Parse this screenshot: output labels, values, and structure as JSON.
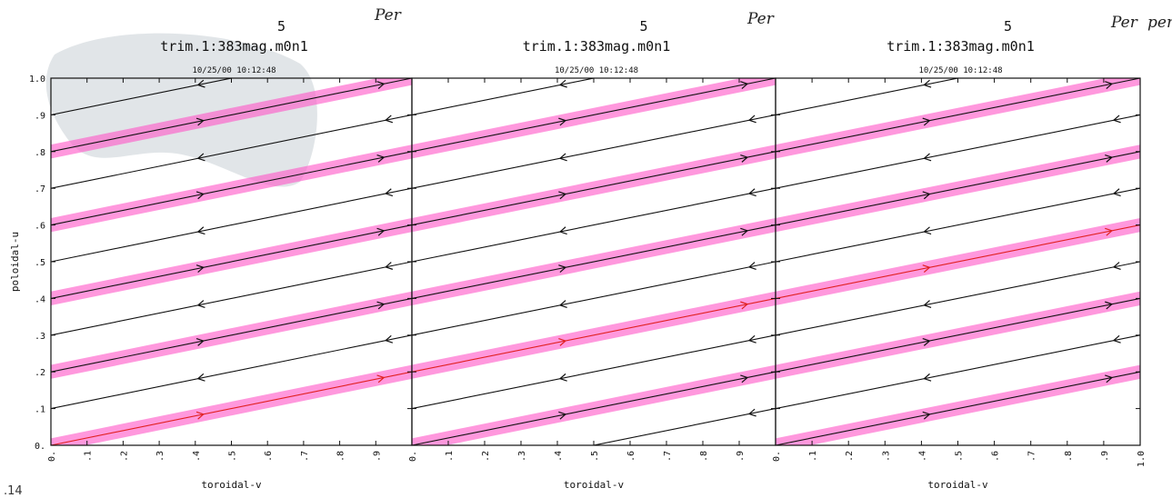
{
  "annotations": {
    "corner_text": ".14",
    "handwritten": [
      "Per",
      "Per",
      "Per",
      "per"
    ]
  },
  "chart_data": [
    {
      "type": "line",
      "panel_number": "5",
      "title": "trim.1:383mag.m0n1",
      "date": "10/25/00 10:12:48",
      "xlabel": "toroidal-v",
      "ylabel": "poloidal-u",
      "xlim": [
        0,
        1
      ],
      "ylim": [
        0,
        1
      ],
      "x_ticks": [
        "0.",
        ".1",
        ".2",
        ".3",
        ".4",
        ".5",
        ".6",
        ".7",
        ".8",
        ".9"
      ],
      "y_ticks": [
        "0.",
        ".1",
        ".2",
        ".3",
        ".4",
        ".5",
        ".6",
        ".7",
        ".8",
        ".9",
        "1.0"
      ],
      "line_slope": 0.2,
      "series": [
        {
          "y0": -0.2,
          "direction": "backward",
          "highlighted": false
        },
        {
          "y0": 0.0,
          "direction": "forward",
          "highlighted": true,
          "red_trace": true
        },
        {
          "y0": 0.1,
          "direction": "backward",
          "highlighted": false
        },
        {
          "y0": 0.2,
          "direction": "forward",
          "highlighted": true
        },
        {
          "y0": 0.3,
          "direction": "backward",
          "highlighted": false
        },
        {
          "y0": 0.4,
          "direction": "forward",
          "highlighted": true
        },
        {
          "y0": 0.5,
          "direction": "backward",
          "highlighted": false
        },
        {
          "y0": 0.6,
          "direction": "forward",
          "highlighted": true
        },
        {
          "y0": 0.7,
          "direction": "backward",
          "highlighted": false
        },
        {
          "y0": 0.8,
          "direction": "forward",
          "highlighted": true
        },
        {
          "y0": 0.9,
          "direction": "backward",
          "highlighted": false
        }
      ]
    },
    {
      "type": "line",
      "panel_number": "5",
      "title": "trim.1:383mag.m0n1",
      "date": "10/25/00 10:12:48",
      "xlabel": "toroidal-v",
      "ylabel": "",
      "xlim": [
        0,
        1
      ],
      "ylim": [
        0,
        1
      ],
      "x_ticks": [
        "0.",
        ".1",
        ".2",
        ".3",
        ".4",
        ".5",
        ".6",
        ".7",
        ".8",
        ".9"
      ],
      "y_ticks": [],
      "line_slope": 0.2,
      "series": [
        {
          "y0": -0.1,
          "direction": "backward",
          "highlighted": false
        },
        {
          "y0": 0.0,
          "direction": "forward",
          "highlighted": true
        },
        {
          "y0": 0.1,
          "direction": "backward",
          "highlighted": false
        },
        {
          "y0": 0.2,
          "direction": "forward",
          "highlighted": true,
          "red_trace": true
        },
        {
          "y0": 0.3,
          "direction": "backward",
          "highlighted": false
        },
        {
          "y0": 0.4,
          "direction": "forward",
          "highlighted": true
        },
        {
          "y0": 0.5,
          "direction": "backward",
          "highlighted": false
        },
        {
          "y0": 0.6,
          "direction": "forward",
          "highlighted": true
        },
        {
          "y0": 0.7,
          "direction": "backward",
          "highlighted": false
        },
        {
          "y0": 0.8,
          "direction": "forward",
          "highlighted": true
        },
        {
          "y0": 0.9,
          "direction": "backward",
          "highlighted": false
        }
      ]
    },
    {
      "type": "line",
      "panel_number": "5",
      "title": "trim.1:383mag.m0n1",
      "date": "10/25/00 10:12:48",
      "xlabel": "toroidal-v",
      "ylabel": "",
      "xlim": [
        0,
        1
      ],
      "ylim": [
        0,
        1
      ],
      "x_ticks": [
        "0.",
        ".1",
        ".2",
        ".3",
        ".4",
        ".5",
        ".6",
        ".7",
        ".8",
        ".9",
        "1.0"
      ],
      "y_ticks": [],
      "line_slope": 0.2,
      "series": [
        {
          "y0": -0.2,
          "direction": "backward",
          "highlighted": false
        },
        {
          "y0": 0.0,
          "direction": "forward",
          "highlighted": true
        },
        {
          "y0": 0.1,
          "direction": "backward",
          "highlighted": false
        },
        {
          "y0": 0.2,
          "direction": "forward",
          "highlighted": true
        },
        {
          "y0": 0.3,
          "direction": "backward",
          "highlighted": false
        },
        {
          "y0": 0.4,
          "direction": "forward",
          "highlighted": true,
          "red_trace": true
        },
        {
          "y0": 0.5,
          "direction": "backward",
          "highlighted": false
        },
        {
          "y0": 0.6,
          "direction": "forward",
          "highlighted": true
        },
        {
          "y0": 0.7,
          "direction": "backward",
          "highlighted": false
        },
        {
          "y0": 0.8,
          "direction": "forward",
          "highlighted": true
        },
        {
          "y0": 0.9,
          "direction": "backward",
          "highlighted": false
        }
      ]
    }
  ],
  "colors": {
    "highlight": "#ff55c8",
    "trace": "#111111",
    "red_trace": "#e02020",
    "smudge": "#c9cfd6"
  }
}
